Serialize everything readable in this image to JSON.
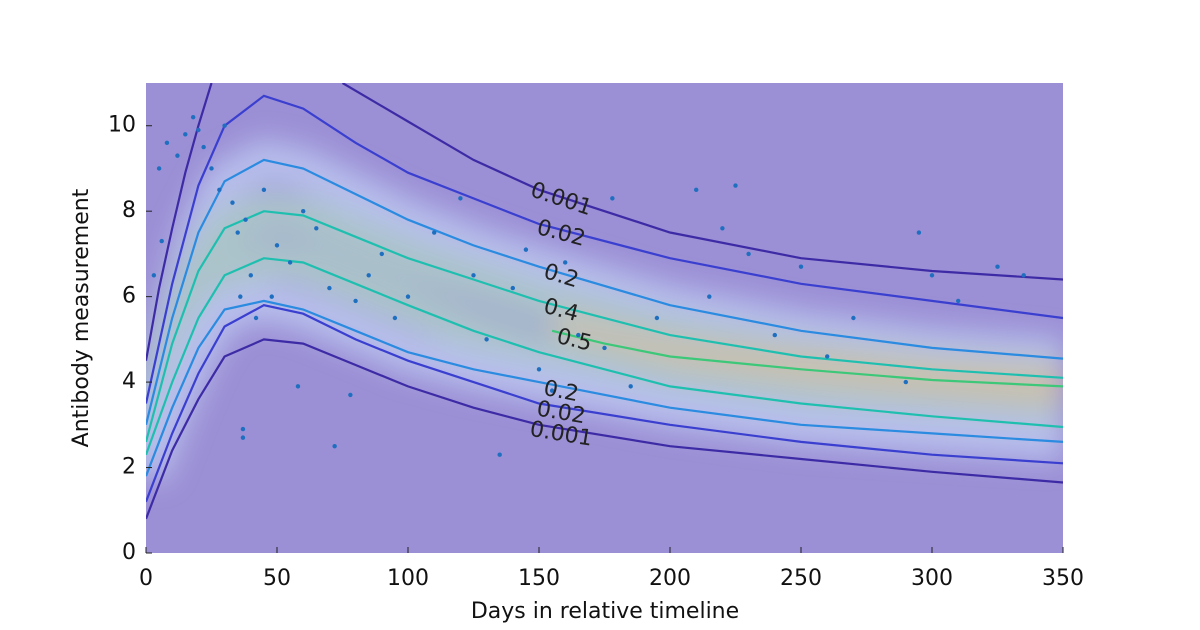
{
  "chart_data": {
    "type": "contour",
    "xlabel": "Days in relative timeline",
    "ylabel": "Antibody measurement",
    "xlim": [
      0,
      350
    ],
    "ylim": [
      0,
      11
    ],
    "xticks": [
      0,
      50,
      100,
      150,
      200,
      250,
      300,
      350
    ],
    "yticks": [
      0,
      2,
      4,
      6,
      8,
      10
    ],
    "background": "#9b8fd5",
    "series": [
      {
        "name": "0.001",
        "color": "#3d2ba6",
        "x": [
          0,
          5,
          10,
          15,
          20,
          25,
          50,
          75,
          100,
          125,
          150,
          200,
          250,
          300,
          350
        ],
        "y": [
          4.5,
          6.2,
          7.6,
          8.9,
          10.0,
          11,
          null,
          11,
          10.1,
          9.2,
          8.5,
          7.5,
          6.9,
          6.6,
          6.4
        ]
      },
      {
        "name": "0.02",
        "color": "#3a3fd0",
        "x": [
          0,
          10,
          20,
          30,
          45,
          60,
          80,
          100,
          125,
          150,
          200,
          250,
          300,
          350
        ],
        "y": [
          3.5,
          6.3,
          8.6,
          10.0,
          10.7,
          10.4,
          9.6,
          8.9,
          8.3,
          7.7,
          6.9,
          6.3,
          5.9,
          5.5
        ]
      },
      {
        "name": "0.2",
        "color": "#2a8be0",
        "x": [
          0,
          10,
          20,
          30,
          45,
          60,
          80,
          100,
          125,
          150,
          200,
          250,
          300,
          350
        ],
        "y": [
          3.0,
          5.5,
          7.5,
          8.7,
          9.2,
          9.0,
          8.4,
          7.8,
          7.2,
          6.7,
          5.8,
          5.2,
          4.8,
          4.55
        ]
      },
      {
        "name": "0.4",
        "color": "#1fbfb0",
        "x": [
          0,
          10,
          20,
          30,
          45,
          60,
          80,
          100,
          125,
          150,
          200,
          250,
          300,
          350
        ],
        "y": [
          2.6,
          4.9,
          6.6,
          7.6,
          8.0,
          7.9,
          7.4,
          6.9,
          6.4,
          5.9,
          5.1,
          4.6,
          4.3,
          4.1
        ]
      },
      {
        "name": "0.5",
        "color": "#3cc878",
        "x": [
          155,
          175,
          200,
          250,
          300,
          350
        ],
        "y": [
          5.2,
          4.9,
          4.6,
          4.3,
          4.05,
          3.9
        ]
      },
      {
        "color": "#1fbfb0",
        "x": [
          0,
          10,
          20,
          30,
          45,
          60,
          80,
          100,
          125,
          150,
          200,
          250,
          300,
          350
        ],
        "y": [
          2.3,
          4.0,
          5.5,
          6.5,
          6.9,
          6.8,
          6.3,
          5.8,
          5.2,
          4.7,
          3.9,
          3.5,
          3.2,
          2.95
        ]
      },
      {
        "name": "0.2",
        "color": "#2a8be0",
        "x": [
          0,
          10,
          20,
          30,
          45,
          60,
          80,
          100,
          125,
          150,
          200,
          250,
          300,
          350
        ],
        "y": [
          1.8,
          3.4,
          4.8,
          5.7,
          5.9,
          5.7,
          5.2,
          4.7,
          4.3,
          4.0,
          3.4,
          3.0,
          2.8,
          2.6
        ]
      },
      {
        "name": "0.02",
        "color": "#3a3fd0",
        "x": [
          0,
          10,
          20,
          30,
          45,
          60,
          80,
          100,
          125,
          150,
          200,
          250,
          300,
          350
        ],
        "y": [
          1.2,
          2.8,
          4.2,
          5.3,
          5.8,
          5.6,
          5.0,
          4.5,
          4.0,
          3.5,
          3.0,
          2.6,
          2.3,
          2.1
        ]
      },
      {
        "name": "0.001",
        "color": "#3d2ba6",
        "x": [
          0,
          10,
          20,
          30,
          45,
          60,
          80,
          100,
          125,
          150,
          200,
          250,
          300,
          350
        ],
        "y": [
          0.8,
          2.4,
          3.6,
          4.6,
          5.0,
          4.9,
          4.4,
          3.9,
          3.4,
          3.0,
          2.5,
          2.2,
          1.9,
          1.65
        ]
      }
    ],
    "points": {
      "color": "#1f6fc0",
      "x": [
        5,
        8,
        12,
        15,
        18,
        20,
        22,
        25,
        28,
        30,
        33,
        35,
        36,
        38,
        40,
        42,
        45,
        48,
        50,
        55,
        58,
        60,
        65,
        70,
        72,
        78,
        80,
        85,
        90,
        95,
        100,
        110,
        120,
        125,
        130,
        135,
        140,
        145,
        150,
        155,
        160,
        165,
        175,
        178,
        185,
        195,
        210,
        215,
        220,
        225,
        230,
        240,
        250,
        260,
        270,
        290,
        295,
        300,
        310,
        325,
        335,
        37,
        37,
        3,
        6
      ],
      "y": [
        9.0,
        9.6,
        9.3,
        9.8,
        10.2,
        9.9,
        9.5,
        9.0,
        8.5,
        10.0,
        8.2,
        7.5,
        6.0,
        7.8,
        6.5,
        5.5,
        8.5,
        6.0,
        7.2,
        6.8,
        3.9,
        8.0,
        7.6,
        6.2,
        2.5,
        3.7,
        5.9,
        6.5,
        7.0,
        5.5,
        6.0,
        7.5,
        8.3,
        6.5,
        5.0,
        2.3,
        6.2,
        7.1,
        4.3,
        3.8,
        6.8,
        5.1,
        4.8,
        8.3,
        3.9,
        5.5,
        8.5,
        6.0,
        7.6,
        8.6,
        7.0,
        5.1,
        6.7,
        4.6,
        5.5,
        4.0,
        7.5,
        6.5,
        5.9,
        6.7,
        6.5,
        2.7,
        2.9,
        6.5,
        7.3
      ]
    }
  }
}
